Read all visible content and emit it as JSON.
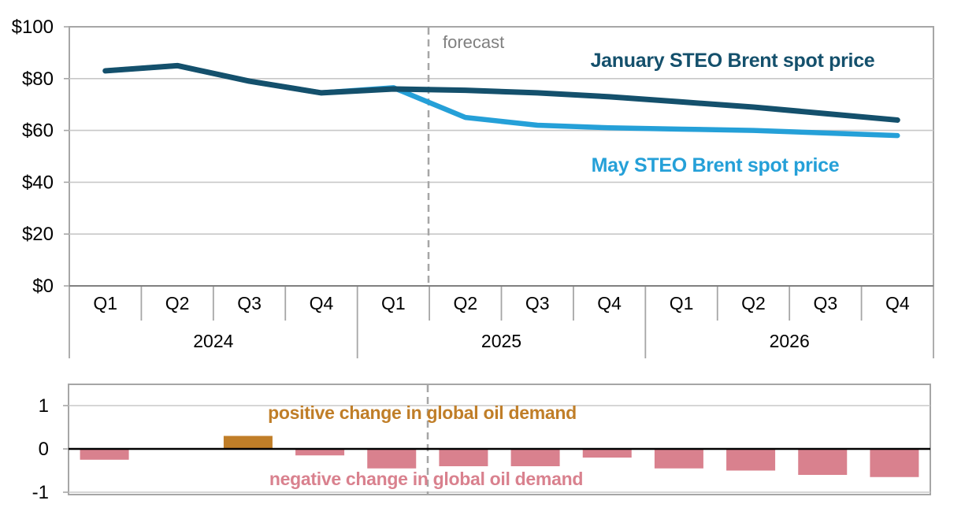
{
  "chart_data": [
    {
      "type": "line",
      "title": "",
      "y_axis": {
        "tick_labels": [
          "$100",
          "$80",
          "$60",
          "$40",
          "$20",
          "$0"
        ],
        "tick_values": [
          100,
          80,
          60,
          40,
          20,
          0
        ],
        "ylim": [
          0,
          100
        ],
        "grid": true
      },
      "x_axis": {
        "years": [
          {
            "label": "2024",
            "quarters": [
              "Q1",
              "Q2",
              "Q3",
              "Q4"
            ]
          },
          {
            "label": "2025",
            "quarters": [
              "Q1",
              "Q2",
              "Q3",
              "Q4"
            ]
          },
          {
            "label": "2026",
            "quarters": [
              "Q1",
              "Q2",
              "Q3",
              "Q4"
            ]
          }
        ]
      },
      "forecast_label": "forecast",
      "forecast_starts_after": "2025 Q1",
      "series": [
        {
          "name": "January STEO Brent spot price",
          "color": "#14506C",
          "values": [
            83,
            85,
            79,
            74.5,
            76,
            75.5,
            74.5,
            73,
            71,
            69,
            66.5,
            64
          ]
        },
        {
          "name": "May STEO Brent spot price",
          "color": "#25A0D8",
          "values": [
            83,
            85,
            79,
            74.5,
            76.5,
            65,
            62,
            61,
            60.5,
            60,
            59,
            58
          ]
        }
      ]
    },
    {
      "type": "bar",
      "title": "",
      "categories": [
        "Q1 2024",
        "Q2 2024",
        "Q3 2024",
        "Q4 2024",
        "Q1 2025",
        "Q2 2025",
        "Q3 2025",
        "Q4 2025",
        "Q1 2026",
        "Q2 2026",
        "Q3 2026",
        "Q4 2026"
      ],
      "values": [
        -0.25,
        0,
        0.3,
        -0.15,
        -0.45,
        -0.4,
        -0.4,
        -0.2,
        -0.45,
        -0.5,
        -0.6,
        -0.65
      ],
      "y_axis": {
        "tick_labels": [
          "1",
          "0",
          "-1"
        ],
        "tick_values": [
          1,
          0,
          -1
        ],
        "ylim": [
          -1.05,
          1.5
        ],
        "grid": true
      },
      "positive_label": "positive change in global oil demand",
      "negative_label": "negative change in global oil demand",
      "positive_color": "#C07E28",
      "negative_color": "#D9818E"
    }
  ],
  "style_colors": {
    "frame_gray": "#A6A6A6",
    "gridline_gray": "#C8C8C8",
    "zero_axis_top": "#808080",
    "zero_axis_bottom": "#000000",
    "forecast_dash_gray": "#A6A6A6",
    "forecast_text_gray": "#7F7F7F"
  }
}
